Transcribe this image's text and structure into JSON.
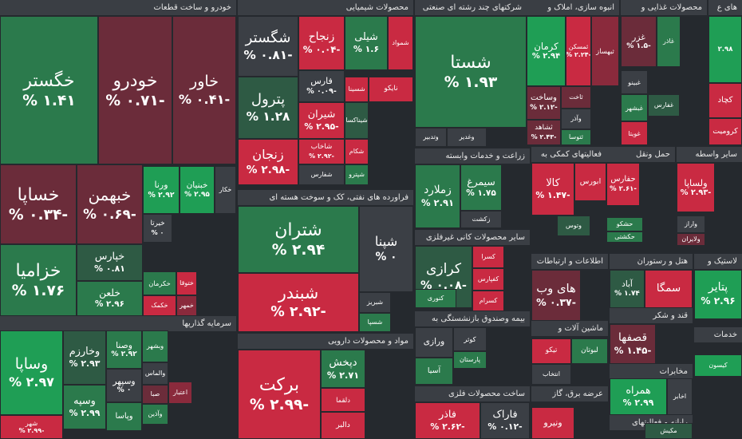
{
  "sectors": [
    {
      "title": "خودرو و ساخت قطعات",
      "tiles": [
        {
          "name": "خگستر",
          "change": "۱.۴۱ %"
        },
        {
          "name": "خودرو",
          "change": "-۰.۷۱ %"
        },
        {
          "name": "خاور",
          "change": "-۰.۴۱ %"
        },
        {
          "name": "خساپا",
          "change": "-۰.۳۴ %"
        },
        {
          "name": "خبهمن",
          "change": "-۰.۶۹ %"
        },
        {
          "name": "خزامیا",
          "change": "۱.۷۶ %"
        },
        {
          "name": "ورنا",
          "change": "۲.۹۲ %"
        },
        {
          "name": "خبنیان",
          "change": "۲.۹۵ %"
        },
        {
          "name": "خکار"
        },
        {
          "name": "خپارس",
          "change": "۰.۸۱ %"
        },
        {
          "name": "خلعن",
          "change": "۲.۹۶ %"
        },
        {
          "name": "خیرتا",
          "change": "۰ %"
        },
        {
          "name": "خکرمان"
        },
        {
          "name": "خکمک"
        },
        {
          "name": "خمهر"
        },
        {
          "name": "ختوقا"
        }
      ]
    },
    {
      "title": "سرمایه گذاریها",
      "tiles": [
        {
          "name": "وساپا",
          "change": "۲.۹۷ %"
        },
        {
          "name": "شهر",
          "change": "-۲.۹۹ %"
        },
        {
          "name": "وخارزم",
          "change": "۲.۹۳ %"
        },
        {
          "name": "وسپه",
          "change": "۲.۹۹ %"
        },
        {
          "name": "وصنا",
          "change": "۲.۹۲ %"
        },
        {
          "name": "وسپهر",
          "change": "۰ %"
        },
        {
          "name": "وپاسا"
        },
        {
          "name": "وبشهر"
        },
        {
          "name": "والماس"
        },
        {
          "name": "صبا"
        },
        {
          "name": "وآذین"
        },
        {
          "name": "اعتبار"
        }
      ]
    },
    {
      "title": "محصولات شیمیایی",
      "tiles": [
        {
          "name": "شگستر",
          "change": "-۰.۸۱ %"
        },
        {
          "name": "پترول",
          "change": "۱.۲۸ %"
        },
        {
          "name": "زنجان",
          "change": "-۲.۹۸ %"
        },
        {
          "name": "زنجاح",
          "change": "-۰.۰۴ %"
        },
        {
          "name": "شیلی",
          "change": "۱.۶ %"
        },
        {
          "name": "شمواد"
        },
        {
          "name": "فارس",
          "change": "-۰.۰۹ %"
        },
        {
          "name": "شیران",
          "change": "-۲.۹۵ %"
        },
        {
          "name": "شاخاب",
          "change": "-۲.۹۲ %"
        },
        {
          "name": "شفارس"
        },
        {
          "name": "شکام"
        },
        {
          "name": "نایکو"
        },
        {
          "name": "شسینا"
        },
        {
          "name": "شیناکسا"
        },
        {
          "name": "شپترو"
        }
      ]
    },
    {
      "title": "شرکتهای چند رشته ای صنعتی",
      "tiles": [
        {
          "name": "شستا",
          "change": "۱.۹۳ %"
        },
        {
          "name": "وغدیر"
        },
        {
          "name": "وتدبیر"
        }
      ]
    },
    {
      "title": "انبوه سازی، املاک و",
      "tiles": [
        {
          "name": "کرمان",
          "change": "۲.۹۴ %"
        },
        {
          "name": "ثمسکن",
          "change": "-۲.۲۴ %"
        },
        {
          "name": "ثبهساز"
        },
        {
          "name": "وساخت",
          "change": "-۲.۱۲ %"
        },
        {
          "name": "ثاخت"
        },
        {
          "name": "ثشاهد",
          "change": "-۲.۴۳ %"
        },
        {
          "name": "وآذر"
        },
        {
          "name": "ثتوسا"
        }
      ]
    },
    {
      "title": "محصولات غذایی و",
      "tiles": [
        {
          "name": "غزر",
          "change": "-۱.۵ %"
        },
        {
          "name": "غاذر"
        },
        {
          "name": "غبینو"
        },
        {
          "name": "غبشهر"
        },
        {
          "name": "غویتا"
        },
        {
          "name": "غفارس"
        }
      ]
    },
    {
      "title": "های ع",
      "tiles": [
        {
          "name": "",
          "change": "۲.۹۸"
        },
        {
          "name": "کچاد"
        },
        {
          "name": "کرومیت"
        }
      ]
    },
    {
      "title": "فراورده های نفتی، کک و سوخت هسته ای",
      "tiles": [
        {
          "name": "شتران",
          "change": "۲.۹۴ %"
        },
        {
          "name": "شبندر",
          "change": "-۲.۹۲ %"
        },
        {
          "name": "شپنا",
          "change": "۰ %"
        },
        {
          "name": "شبریز"
        },
        {
          "name": "شسپا"
        }
      ]
    },
    {
      "title": "مواد و محصولات دارویی",
      "tiles": [
        {
          "name": "برکت",
          "change": "-۲.۹۹ %"
        },
        {
          "name": "دپخش",
          "change": "۲.۷۱ %"
        },
        {
          "name": "دلقما"
        },
        {
          "name": "دالبر"
        }
      ]
    },
    {
      "title": "زراعت و خدمات وابسته",
      "tiles": [
        {
          "name": "زملارد",
          "change": "۲.۹۱ %"
        },
        {
          "name": "سیمرغ",
          "change": "۱.۷۵ %"
        },
        {
          "name": "زکشت"
        }
      ]
    },
    {
      "title": "سایر محصولات کانی غیرفلزی",
      "tiles": [
        {
          "name": "کرازی",
          "change": "-۰.۰۸ %"
        },
        {
          "name": "کسرا"
        },
        {
          "name": "کفپارس"
        },
        {
          "name": "کسرام"
        },
        {
          "name": "کنوری"
        }
      ]
    },
    {
      "title": "بیمه وصندوق بازنشستگی به",
      "tiles": [
        {
          "name": "ورازی"
        },
        {
          "name": "کوثر"
        },
        {
          "name": "پارستان"
        },
        {
          "name": "آسیا"
        }
      ]
    },
    {
      "title": "ساخت محصولات فلزی",
      "tiles": [
        {
          "name": "فاذر",
          "change": "-۲.۶۲ %"
        },
        {
          "name": "فاراک",
          "change": "-۰.۱۲ %"
        }
      ]
    },
    {
      "title": "فعالیتهای کمکی به",
      "tiles": [
        {
          "name": "کالا",
          "change": "-۱.۴۷ %"
        },
        {
          "name": "ابورس"
        },
        {
          "name": "وتوس"
        }
      ]
    },
    {
      "title": "حمل ونقل",
      "tiles": [
        {
          "name": "حفارس",
          "change": "-۲.۶۱ %"
        },
        {
          "name": "حکشتی"
        },
        {
          "name": "حشکو"
        }
      ]
    },
    {
      "title": "سایر واسطه",
      "tiles": [
        {
          "name": "ولساپا",
          "change": "-۲.۹۳ %"
        },
        {
          "name": "واراز"
        },
        {
          "name": "ولایران"
        }
      ]
    },
    {
      "title": "اطلاعات و ارتباطات",
      "tiles": [
        {
          "name": "های وب",
          "change": "-۰.۳۷ %"
        }
      ]
    },
    {
      "title": "هتل و رستوران",
      "tiles": [
        {
          "name": "آباد",
          "change": "۱.۷۴ %"
        },
        {
          "name": "سمگا"
        }
      ]
    },
    {
      "title": "قند و شکر",
      "tiles": [
        {
          "name": "قصفها",
          "change": "-۱.۴۵ %"
        }
      ]
    },
    {
      "title": "ماشین آلات و",
      "tiles": [
        {
          "name": "تیکو"
        },
        {
          "name": "لبوتان"
        },
        {
          "name": "انتخاب"
        }
      ]
    },
    {
      "title": "لاستیک و",
      "tiles": [
        {
          "name": "پتایر",
          "change": "۲.۹۶ %"
        }
      ]
    },
    {
      "title": "خدمات",
      "tiles": [
        {
          "name": "کیسون"
        }
      ]
    },
    {
      "title": "مخابرات",
      "tiles": [
        {
          "name": "همراه",
          "change": "۲.۹۹ %"
        },
        {
          "name": "اخابر"
        }
      ]
    },
    {
      "title": "عرضه برق، گاز",
      "tiles": [
        {
          "name": "ونیرو"
        }
      ]
    },
    {
      "title": "رایانه و فعالیتهای",
      "tiles": [
        {
          "name": "مکیش"
        }
      ]
    }
  ]
}
